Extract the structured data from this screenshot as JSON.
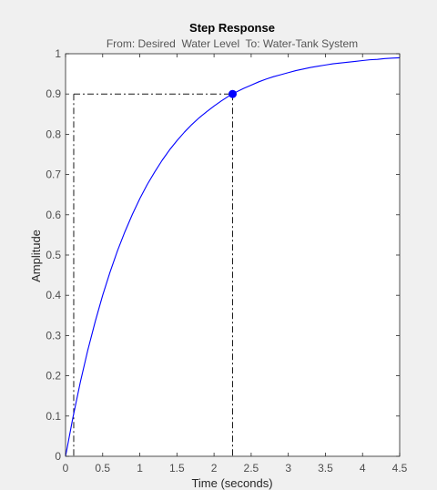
{
  "chart_data": {
    "type": "line",
    "title": "Step Response",
    "subtitle": "From: Desired  Water Level  To: Water-Tank System",
    "xlabel": "Time (seconds)",
    "ylabel": "Amplitude",
    "xlim": [
      0,
      4.5
    ],
    "ylim": [
      0,
      1
    ],
    "xticks": [
      0,
      0.5,
      1,
      1.5,
      2,
      2.5,
      3,
      3.5,
      4,
      4.5
    ],
    "xtick_labels": [
      "0",
      "0.5",
      "1",
      "1.5",
      "2",
      "2.5",
      "3",
      "3.5",
      "4",
      "4.5"
    ],
    "yticks": [
      0,
      0.1,
      0.2,
      0.3,
      0.4,
      0.5,
      0.6,
      0.7,
      0.8,
      0.9,
      1
    ],
    "ytick_labels": [
      "0",
      "0.1",
      "0.2",
      "0.3",
      "0.4",
      "0.5",
      "0.6",
      "0.7",
      "0.8",
      "0.9",
      "1"
    ],
    "grid": false,
    "series": [
      {
        "color": "#0000ff",
        "x": [
          0,
          0.1,
          0.2,
          0.3,
          0.4,
          0.5,
          0.6,
          0.7,
          0.8,
          0.9,
          1.0,
          1.1,
          1.2,
          1.3,
          1.4,
          1.5,
          1.6,
          1.7,
          1.8,
          1.9,
          2.0,
          2.1,
          2.2,
          2.3,
          2.4,
          2.5,
          2.6,
          2.7,
          2.8,
          2.9,
          3.0,
          3.1,
          3.2,
          3.3,
          3.4,
          3.5,
          3.6,
          3.7,
          3.8,
          3.9,
          4.0,
          4.1,
          4.2,
          4.3,
          4.4,
          4.5
        ],
        "y": [
          0,
          0.097,
          0.185,
          0.264,
          0.335,
          0.4,
          0.458,
          0.511,
          0.558,
          0.601,
          0.64,
          0.675,
          0.706,
          0.735,
          0.761,
          0.784,
          0.805,
          0.824,
          0.841,
          0.856,
          0.87,
          0.883,
          0.895,
          0.905,
          0.914,
          0.922,
          0.93,
          0.937,
          0.943,
          0.948,
          0.953,
          0.958,
          0.962,
          0.966,
          0.969,
          0.972,
          0.975,
          0.977,
          0.979,
          0.981,
          0.983,
          0.985,
          0.986,
          0.988,
          0.989,
          0.99
        ]
      }
    ],
    "rise_time_markers": {
      "start_x": 0.11,
      "end_x": 2.25,
      "level_y": 0.9,
      "marker_color": "#0000ff"
    }
  }
}
